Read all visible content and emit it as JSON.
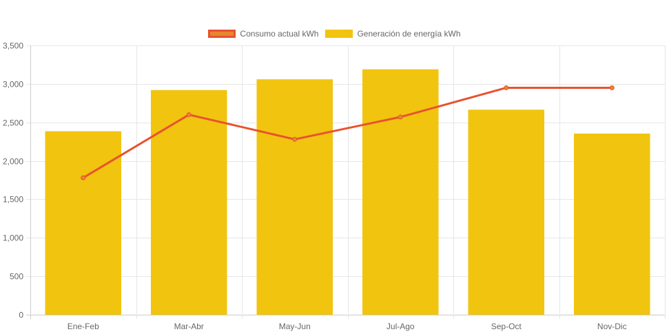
{
  "chart_data": {
    "type": "bar",
    "categories": [
      "Ene-Feb",
      "Mar-Abr",
      "May-Jun",
      "Jul-Ago",
      "Sep-Oct",
      "Nov-Dic"
    ],
    "series": [
      {
        "name": "Consumo actual kWh",
        "type": "line",
        "values": [
          1780,
          2600,
          2280,
          2570,
          2950,
          2950
        ],
        "color": "#e8522e",
        "point_fill": "#e8862e"
      },
      {
        "name": "Generación de energía kWh",
        "type": "bar",
        "values": [
          2385,
          2920,
          3060,
          3190,
          2665,
          2355
        ],
        "color": "#f1c40f"
      }
    ],
    "ylim": [
      0,
      3500
    ],
    "y_ticks": [
      0,
      500,
      1000,
      1500,
      2000,
      2500,
      3000,
      3500
    ],
    "y_tick_labels": [
      "0",
      "500",
      "1,000",
      "1,500",
      "2,000",
      "2,500",
      "3,000",
      "3,500"
    ],
    "grid": true,
    "legend_position": "top-center",
    "title": "",
    "xlabel": "",
    "ylabel": ""
  }
}
